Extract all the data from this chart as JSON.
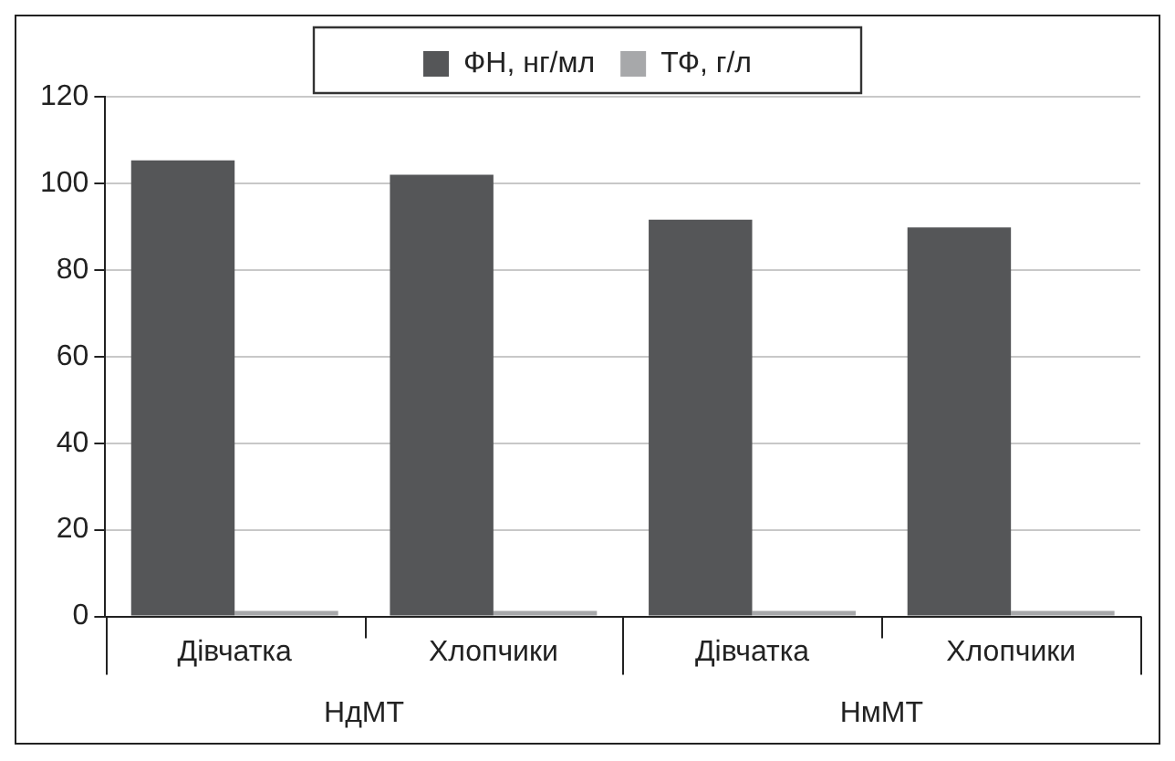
{
  "chart_data": {
    "type": "bar",
    "categories": [
      "Дівчатка",
      "Хлопчики",
      "Дівчатка",
      "Хлопчики"
    ],
    "series": [
      {
        "name": "ФН, нг/мл",
        "color": "#555658",
        "values": [
          105.3,
          102,
          91.6,
          89.8
        ]
      },
      {
        "name": "ТФ, г/л",
        "color": "#a7a8aa",
        "values": [
          1.3,
          1.3,
          1.3,
          1.3
        ]
      }
    ],
    "annotations": [
      "НдМТ",
      "НмМТ"
    ],
    "ylim": [
      0,
      120
    ],
    "yticks": [
      0,
      20,
      40,
      60,
      80,
      100,
      120
    ],
    "grid": "y",
    "legend": "top"
  }
}
